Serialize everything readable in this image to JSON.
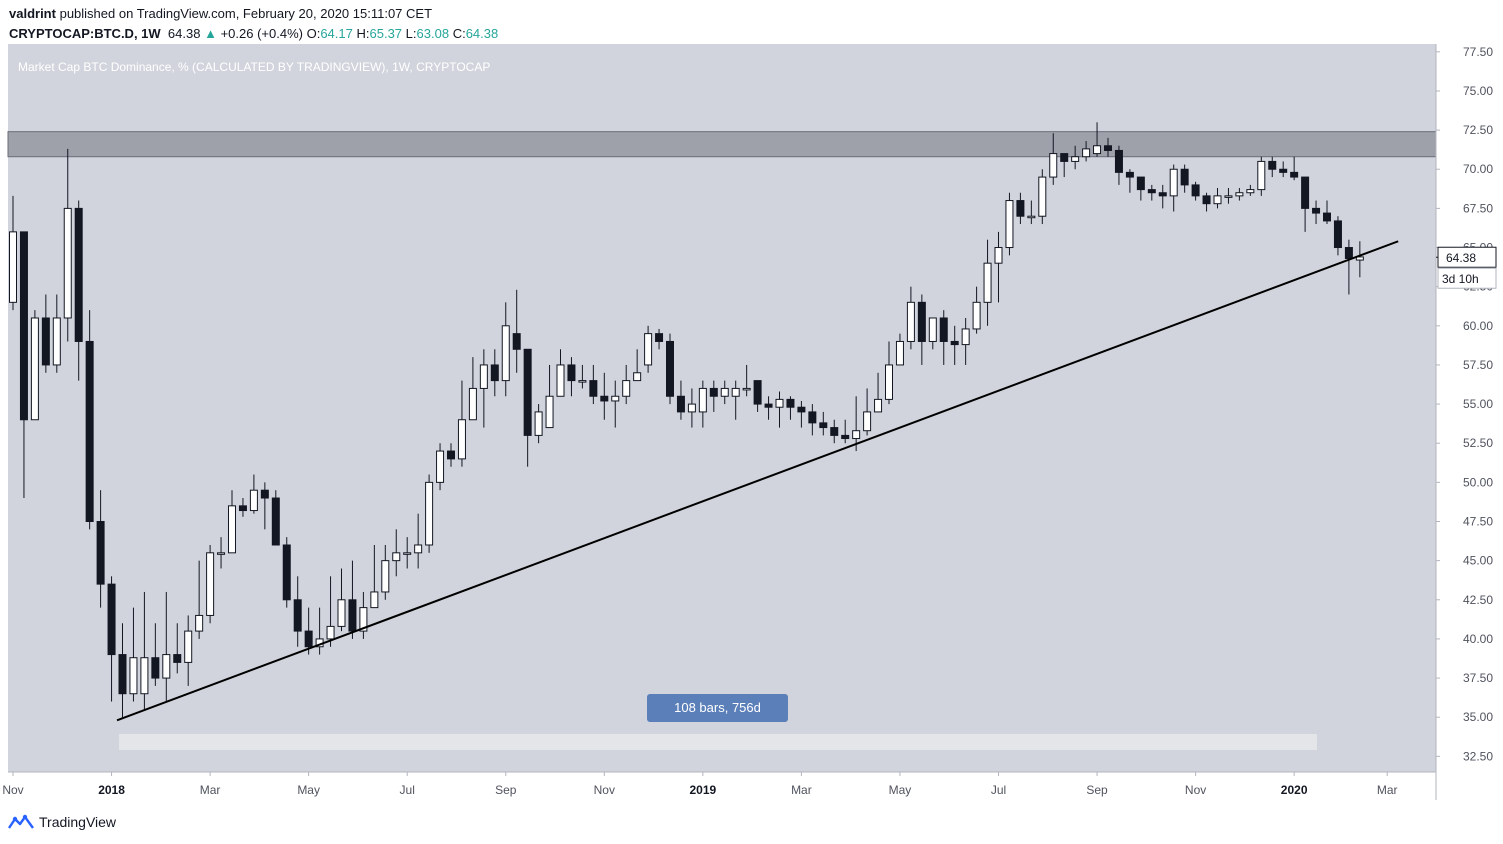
{
  "header": {
    "author": "valdrint",
    "published_text": "published on TradingView.com, February 20, 2020 15:11:07 CET",
    "symbol": "CRYPTOCAP:BTC.D, 1W",
    "last": "64.38",
    "change_arrow": "▲",
    "change": "+0.26 (+0.4%)",
    "open_label": "O:",
    "open": "64.17",
    "high_label": "H:",
    "high": "65.37",
    "low_label": "L:",
    "low": "63.08",
    "close_label": "C:",
    "close": "64.38"
  },
  "footer": {
    "brand": "TradingView",
    "logo_icon": "tradingview-logo-icon"
  },
  "colors": {
    "pane_bg": "#d1d4dc",
    "bull_fill": "#ffffff",
    "bear_fill": "#131722",
    "wick": "#131722",
    "resistance_zone": "#9598a1",
    "trendline": "#000000",
    "measure_label_bg": "#5b7fb9",
    "axis_text": "#50535e"
  },
  "chart_data": {
    "type": "candlestick",
    "title": "Market Cap BTC Dominance, % (CALCULATED BY TRADINGVIEW), 1W, CRYPTOCAP",
    "ylim": [
      31.5,
      78
    ],
    "y_ticks": [
      "32.50",
      "35.00",
      "37.50",
      "40.00",
      "42.50",
      "45.00",
      "47.50",
      "50.00",
      "52.50",
      "55.00",
      "57.50",
      "60.00",
      "62.50",
      "65.00",
      "67.50",
      "70.00",
      "72.50",
      "75.00",
      "77.50"
    ],
    "x_ticks": [
      {
        "label": "Nov",
        "bar": 0
      },
      {
        "label": "2018",
        "bar": 9
      },
      {
        "label": "Mar",
        "bar": 18
      },
      {
        "label": "May",
        "bar": 27
      },
      {
        "label": "Jul",
        "bar": 36
      },
      {
        "label": "Sep",
        "bar": 45
      },
      {
        "label": "Nov",
        "bar": 54
      },
      {
        "label": "2019",
        "bar": 63
      },
      {
        "label": "Mar",
        "bar": 72
      },
      {
        "label": "May",
        "bar": 81
      },
      {
        "label": "Jul",
        "bar": 90
      },
      {
        "label": "Sep",
        "bar": 99
      },
      {
        "label": "Nov",
        "bar": 108
      },
      {
        "label": "2020",
        "bar": 117
      },
      {
        "label": "Mar",
        "bar": 125.5
      }
    ],
    "candles": [
      [
        61.5,
        66.0,
        68.3,
        61.0
      ],
      [
        66.0,
        54.0,
        66.0,
        49.0
      ],
      [
        54.0,
        60.5,
        61.0,
        54.0
      ],
      [
        60.5,
        57.5,
        62.0,
        57.0
      ],
      [
        57.5,
        60.5,
        62.0,
        57.0
      ],
      [
        60.5,
        67.5,
        71.3,
        59.0
      ],
      [
        67.5,
        59.0,
        68.0,
        56.5
      ],
      [
        59.0,
        47.5,
        61.0,
        47.0
      ],
      [
        47.5,
        43.5,
        49.5,
        42.0
      ],
      [
        43.5,
        39.0,
        44.0,
        36.0
      ],
      [
        39.0,
        36.5,
        41.0,
        35.0
      ],
      [
        36.5,
        38.8,
        42.0,
        36.0
      ],
      [
        36.5,
        38.8,
        43.0,
        35.5
      ],
      [
        38.8,
        37.5,
        41.0,
        37.0
      ],
      [
        37.5,
        39.0,
        43.0,
        36.0
      ],
      [
        39.0,
        38.5,
        41.0,
        37.8
      ],
      [
        38.5,
        40.5,
        41.5,
        37.0
      ],
      [
        40.5,
        41.5,
        45.0,
        40.0
      ],
      [
        41.5,
        45.5,
        46.0,
        41.0
      ],
      [
        45.5,
        45.5,
        46.5,
        44.5
      ],
      [
        45.5,
        48.5,
        49.5,
        45.5
      ],
      [
        48.5,
        48.2,
        49.0,
        47.8
      ],
      [
        48.2,
        49.5,
        50.5,
        48.0
      ],
      [
        49.5,
        49.0,
        50.0,
        47.0
      ],
      [
        49.0,
        46.0,
        49.5,
        46.0
      ],
      [
        46.0,
        42.5,
        46.5,
        42.0
      ],
      [
        42.5,
        40.5,
        44.0,
        39.5
      ],
      [
        40.5,
        39.5,
        42.0,
        39.0
      ],
      [
        39.5,
        40.0,
        42.0,
        39.0
      ],
      [
        40.0,
        40.8,
        44.0,
        39.5
      ],
      [
        40.8,
        42.5,
        44.5,
        40.5
      ],
      [
        42.5,
        40.5,
        45.0,
        40.0
      ],
      [
        40.5,
        42.0,
        43.0,
        40.0
      ],
      [
        42.0,
        43.0,
        46.0,
        42.0
      ],
      [
        43.0,
        45.0,
        46.0,
        42.5
      ],
      [
        45.0,
        45.5,
        47.0,
        44.0
      ],
      [
        45.5,
        45.5,
        46.5,
        44.5
      ],
      [
        45.5,
        46.0,
        48.0,
        44.5
      ],
      [
        46.0,
        50.0,
        50.5,
        45.5
      ],
      [
        50.0,
        52.0,
        52.5,
        49.5
      ],
      [
        52.0,
        51.5,
        52.5,
        51.0
      ],
      [
        51.5,
        54.0,
        56.5,
        51.0
      ],
      [
        54.0,
        56.0,
        58.0,
        55.0
      ],
      [
        56.0,
        57.5,
        58.5,
        53.5
      ],
      [
        57.5,
        56.5,
        58.5,
        55.5
      ],
      [
        56.5,
        60.0,
        61.5,
        55.5
      ],
      [
        59.5,
        58.5,
        62.3,
        57.0
      ],
      [
        58.5,
        53.0,
        58.5,
        51.0
      ],
      [
        53.0,
        54.5,
        55.0,
        52.5
      ],
      [
        53.5,
        55.5,
        57.5,
        53.5
      ],
      [
        55.5,
        57.5,
        58.5,
        55.5
      ],
      [
        57.5,
        56.5,
        58.0,
        55.5
      ],
      [
        56.5,
        56.5,
        57.5,
        56.0
      ],
      [
        56.5,
        55.5,
        57.5,
        55.0
      ],
      [
        55.5,
        55.2,
        57.0,
        54.0
      ],
      [
        55.2,
        55.5,
        56.5,
        53.5
      ],
      [
        55.5,
        56.5,
        57.5,
        55.0
      ],
      [
        56.5,
        57.0,
        58.5,
        56.5
      ],
      [
        57.5,
        59.5,
        60.0,
        57.0
      ],
      [
        59.5,
        59.0,
        59.8,
        58.5
      ],
      [
        59.0,
        55.5,
        59.5,
        55.0
      ],
      [
        55.5,
        54.5,
        56.5,
        54.0
      ],
      [
        54.5,
        55.0,
        56.0,
        53.5
      ],
      [
        54.5,
        56.0,
        56.5,
        53.5
      ],
      [
        56.0,
        55.5,
        56.5,
        54.5
      ],
      [
        55.5,
        56.0,
        56.5,
        55.0
      ],
      [
        55.5,
        56.0,
        56.5,
        54.0
      ],
      [
        56.0,
        56.0,
        57.5,
        55.5
      ],
      [
        56.5,
        55.0,
        56.5,
        54.5
      ],
      [
        55.0,
        54.8,
        55.5,
        54.0
      ],
      [
        54.8,
        55.3,
        55.8,
        53.5
      ],
      [
        55.3,
        54.8,
        55.5,
        54.0
      ],
      [
        54.8,
        54.5,
        55.2,
        53.5
      ],
      [
        54.5,
        53.8,
        55.0,
        53.0
      ],
      [
        53.8,
        53.5,
        54.5,
        53.0
      ],
      [
        53.5,
        53.0,
        54.0,
        52.5
      ],
      [
        53.0,
        52.8,
        54.0,
        52.5
      ],
      [
        52.8,
        53.3,
        55.5,
        52.0
      ],
      [
        53.3,
        54.5,
        56.0,
        53.0
      ],
      [
        54.5,
        55.3,
        57.0,
        54.5
      ],
      [
        55.3,
        57.5,
        59.0,
        55.0
      ],
      [
        57.5,
        59.0,
        59.5,
        57.5
      ],
      [
        59.0,
        61.5,
        62.5,
        58.5
      ],
      [
        61.5,
        59.0,
        62.0,
        57.5
      ],
      [
        59.0,
        60.5,
        60.5,
        58.5
      ],
      [
        60.5,
        59.0,
        61.0,
        57.5
      ],
      [
        59.0,
        58.8,
        60.0,
        57.5
      ],
      [
        58.8,
        59.8,
        60.5,
        57.5
      ],
      [
        59.8,
        61.5,
        62.5,
        59.5
      ],
      [
        61.5,
        64.0,
        65.5,
        60.0
      ],
      [
        64.0,
        65.0,
        66.0,
        61.5
      ],
      [
        65.0,
        68.0,
        68.5,
        64.5
      ],
      [
        68.0,
        67.0,
        68.5,
        66.5
      ],
      [
        67.0,
        67.0,
        68.0,
        66.5
      ],
      [
        67.0,
        69.5,
        70.0,
        66.5
      ],
      [
        69.5,
        71.0,
        72.3,
        69.0
      ],
      [
        71.0,
        70.5,
        71.0,
        69.5
      ],
      [
        70.5,
        70.8,
        71.5,
        70.0
      ],
      [
        70.8,
        71.3,
        71.8,
        70.5
      ],
      [
        71.0,
        71.5,
        73.0,
        70.8
      ],
      [
        71.5,
        71.2,
        72.0,
        70.8
      ],
      [
        71.2,
        69.8,
        71.5,
        69.0
      ],
      [
        69.8,
        69.5,
        70.0,
        68.5
      ],
      [
        69.5,
        68.7,
        69.5,
        68.0
      ],
      [
        68.7,
        68.5,
        69.0,
        68.0
      ],
      [
        68.5,
        68.3,
        69.0,
        67.5
      ],
      [
        68.3,
        70.0,
        70.3,
        67.3
      ],
      [
        70.0,
        69.0,
        70.3,
        68.5
      ],
      [
        69.0,
        68.3,
        69.2,
        68.0
      ],
      [
        68.3,
        67.8,
        68.5,
        67.3
      ],
      [
        67.8,
        68.3,
        68.8,
        67.5
      ],
      [
        68.3,
        68.3,
        68.8,
        67.8
      ],
      [
        68.3,
        68.5,
        68.8,
        68.0
      ],
      [
        68.5,
        68.7,
        69.0,
        68.3
      ],
      [
        68.7,
        70.5,
        70.8,
        68.3
      ],
      [
        70.5,
        70.0,
        70.8,
        69.5
      ],
      [
        70.0,
        69.8,
        70.5,
        69.5
      ],
      [
        69.8,
        69.5,
        70.8,
        69.3
      ],
      [
        69.5,
        67.5,
        69.5,
        66.0
      ],
      [
        67.5,
        67.2,
        68.0,
        66.5
      ],
      [
        67.2,
        66.7,
        68.0,
        66.5
      ],
      [
        66.7,
        65.0,
        67.0,
        64.5
      ],
      [
        65.0,
        64.3,
        65.5,
        62.0
      ],
      [
        64.2,
        64.4,
        65.4,
        63.1
      ]
    ],
    "resistance_zone": [
      70.8,
      72.4
    ],
    "trendline": {
      "start": {
        "bar": 9.5,
        "value": 34.8
      },
      "end": {
        "bar": 126.5,
        "value": 65.4
      }
    },
    "last_price_label": "64.38",
    "countdown_label": "3d 10h",
    "measure_label": "108 bars, 756d"
  }
}
